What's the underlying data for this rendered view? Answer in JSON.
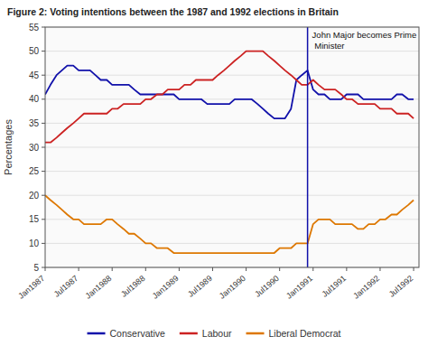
{
  "chart_data": {
    "type": "line",
    "title": "Figure 2: Voting intentions between the 1987 and 1992 elections in Britain",
    "y_label": "Percentages",
    "xlim": [
      1987.0,
      1992.58
    ],
    "ylim": [
      5,
      55
    ],
    "yticks": [
      5,
      10,
      15,
      20,
      25,
      30,
      35,
      40,
      45,
      50,
      55
    ],
    "xticks": [
      {
        "value": 1987.0,
        "label": "Jan1987"
      },
      {
        "value": 1987.5,
        "label": "Jul1987"
      },
      {
        "value": 1988.0,
        "label": "Jan1988"
      },
      {
        "value": 1988.5,
        "label": "Jul1988"
      },
      {
        "value": 1989.0,
        "label": "Jan1989"
      },
      {
        "value": 1989.5,
        "label": "Jul1989"
      },
      {
        "value": 1990.0,
        "label": "Jan1990"
      },
      {
        "value": 1990.5,
        "label": "Jul1990"
      },
      {
        "value": 1991.0,
        "label": "Jan1991"
      },
      {
        "value": 1991.5,
        "label": "Jul1991"
      },
      {
        "value": 1992.0,
        "label": "Jan1992"
      },
      {
        "value": 1992.5,
        "label": "Jul1992"
      }
    ],
    "grid": true,
    "legend": "bottom",
    "annotations": [
      {
        "text": "John Major becomes Prime Minister",
        "x": 1990.917,
        "color": "#1111aa"
      }
    ],
    "x": [
      1987.0,
      1987.08,
      1987.17,
      1987.25,
      1987.33,
      1987.42,
      1987.5,
      1987.58,
      1987.67,
      1987.75,
      1987.83,
      1987.92,
      1988.0,
      1988.08,
      1988.17,
      1988.25,
      1988.33,
      1988.42,
      1988.5,
      1988.58,
      1988.67,
      1988.75,
      1988.83,
      1988.92,
      1989.0,
      1989.08,
      1989.17,
      1989.25,
      1989.33,
      1989.42,
      1989.5,
      1989.58,
      1989.67,
      1989.75,
      1989.83,
      1989.92,
      1990.0,
      1990.08,
      1990.17,
      1990.25,
      1990.33,
      1990.42,
      1990.5,
      1990.58,
      1990.67,
      1990.75,
      1990.83,
      1990.917,
      1991.0,
      1991.08,
      1991.17,
      1991.25,
      1991.33,
      1991.42,
      1991.5,
      1991.58,
      1991.67,
      1991.75,
      1991.83,
      1991.92,
      1992.0,
      1992.08,
      1992.17,
      1992.25,
      1992.33,
      1992.42,
      1992.5
    ],
    "series": [
      {
        "name": "Conservative",
        "color": "#1111aa",
        "values": [
          41,
          43,
          45,
          46,
          47,
          47,
          46,
          46,
          46,
          45,
          44,
          44,
          43,
          43,
          43,
          43,
          42,
          41,
          41,
          41,
          41,
          41,
          41,
          41,
          40,
          40,
          40,
          40,
          40,
          39,
          39,
          39,
          39,
          39,
          40,
          40,
          40,
          40,
          39,
          38,
          37,
          36,
          36,
          36,
          38,
          44,
          45,
          46,
          42,
          41,
          41,
          40,
          40,
          40,
          41,
          41,
          41,
          40,
          40,
          40,
          40,
          40,
          40,
          41,
          41,
          40,
          40
        ]
      },
      {
        "name": "Labour",
        "color": "#cc2222",
        "values": [
          31,
          31,
          32,
          33,
          34,
          35,
          36,
          37,
          37,
          37,
          37,
          37,
          38,
          38,
          39,
          39,
          39,
          39,
          40,
          40,
          41,
          41,
          42,
          42,
          42,
          43,
          43,
          44,
          44,
          44,
          44,
          45,
          46,
          47,
          48,
          49,
          50,
          50,
          50,
          50,
          49,
          48,
          47,
          46,
          45,
          44,
          43,
          43,
          44,
          43,
          42,
          42,
          42,
          41,
          40,
          40,
          39,
          39,
          39,
          39,
          38,
          38,
          38,
          37,
          37,
          37,
          36
        ]
      },
      {
        "name": "Liberal Democrat",
        "color": "#dd7700",
        "values": [
          20,
          19,
          18,
          17,
          16,
          15,
          15,
          14,
          14,
          14,
          14,
          15,
          15,
          14,
          13,
          12,
          12,
          11,
          10,
          10,
          9,
          9,
          9,
          8,
          8,
          8,
          8,
          8,
          8,
          8,
          8,
          8,
          8,
          8,
          8,
          8,
          8,
          8,
          8,
          8,
          8,
          8,
          9,
          9,
          9,
          10,
          10,
          10,
          14,
          15,
          15,
          15,
          14,
          14,
          14,
          14,
          13,
          13,
          14,
          14,
          15,
          15,
          16,
          16,
          17,
          18,
          19
        ]
      }
    ]
  }
}
